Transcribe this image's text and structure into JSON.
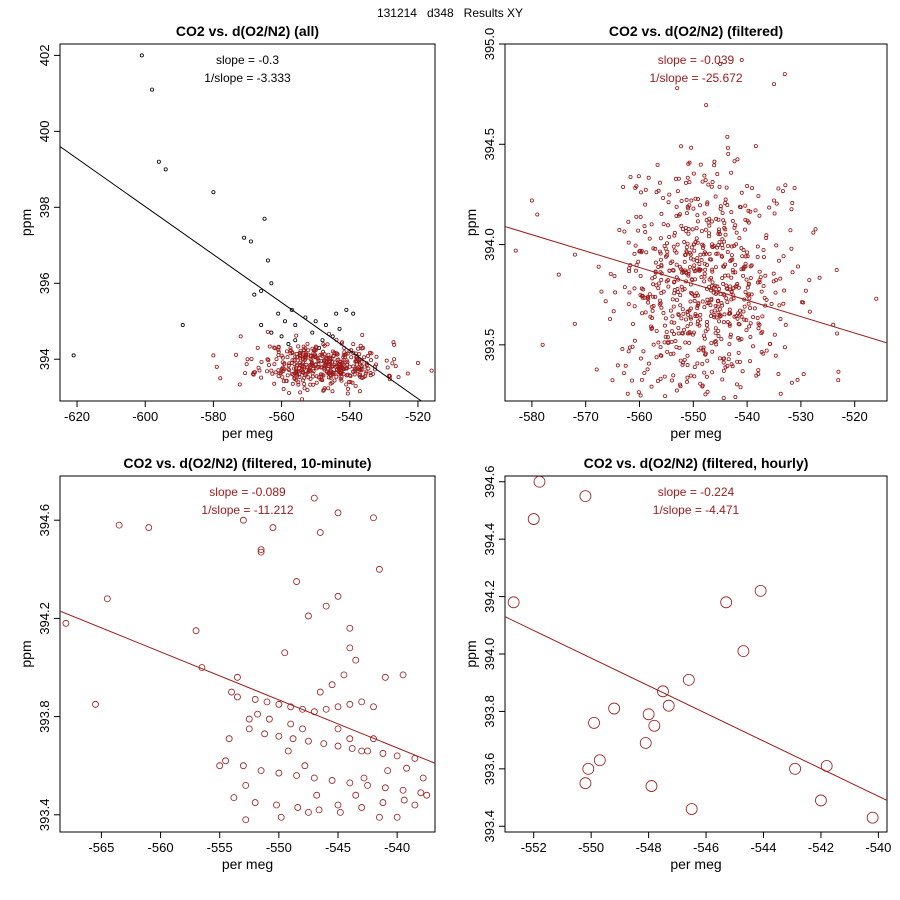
{
  "supertitle": "131214   d348   Results XY",
  "colors": {
    "raw": "#000000",
    "filtered": "#9b1a1a",
    "fit_raw": "#000000",
    "fit_filtered": "#9b1a1a"
  },
  "chart_data": [
    {
      "type": "scatter",
      "title": "CO2 vs. d(O2/N2) (all)",
      "xlabel": "per meg",
      "ylabel": "ppm",
      "xlim": [
        -625,
        -515
      ],
      "ylim": [
        392.9,
        402.3
      ],
      "xticks": [
        -620,
        -600,
        -580,
        -560,
        -540,
        -520
      ],
      "yticks": [
        394,
        396,
        398,
        400,
        402
      ],
      "annotations": [
        "slope = -0.3",
        "1/slope = -3.333"
      ],
      "fit_line": [
        [
          -625,
          399.6
        ],
        [
          -519,
          392.9
        ]
      ],
      "series": [
        {
          "name": "excluded",
          "color": "#000000",
          "marker_size": 1.6,
          "points": [
            [
              -601,
              402.0
            ],
            [
              -598,
              401.1
            ],
            [
              -596,
              399.2
            ],
            [
              -594,
              399.0
            ],
            [
              -580,
              398.4
            ],
            [
              -565,
              397.7
            ],
            [
              -571,
              397.2
            ],
            [
              -569,
              397.1
            ],
            [
              -564,
              396.6
            ],
            [
              -563,
              396.0
            ],
            [
              -566,
              395.8
            ],
            [
              -568,
              395.7
            ],
            [
              -589,
              394.9
            ],
            [
              -621,
              394.1
            ],
            [
              -561,
              395.2
            ],
            [
              -559,
              395.0
            ],
            [
              -556,
              394.9
            ],
            [
              -553,
              395.1
            ],
            [
              -550,
              395.0
            ],
            [
              -547,
              394.9
            ],
            [
              -544,
              395.2
            ],
            [
              -541,
              395.3
            ],
            [
              -545,
              394.6
            ],
            [
              -551,
              394.7
            ],
            [
              -556,
              394.5
            ],
            [
              -560,
              394.6
            ],
            [
              -563,
              394.7
            ],
            [
              -566,
              394.9
            ],
            [
              -558,
              394.4
            ],
            [
              -548,
              394.5
            ],
            [
              -539,
              395.2
            ],
            [
              -557,
              395.3
            ],
            [
              -543,
              394.8
            ],
            [
              -549,
              394.3
            ]
          ]
        },
        {
          "name": "filtered",
          "color": "#9b1a1a",
          "marker_size": 1.6,
          "scatter_seed": 11,
          "n_random": 420,
          "cluster": {
            "x_mean": -548,
            "x_sd": 9,
            "y_mean": 393.85,
            "y_sd": 0.3
          },
          "points": [
            [
              -580,
              394.1
            ],
            [
              -579,
              393.8
            ],
            [
              -578,
              393.5
            ],
            [
              -572,
              394.6
            ],
            [
              -570,
              394.0
            ],
            [
              -567,
              394.3
            ],
            [
              -563,
              393.7
            ],
            [
              -516,
              393.7
            ],
            [
              -520,
              393.9
            ],
            [
              -527,
              394.0
            ]
          ]
        }
      ]
    },
    {
      "type": "scatter",
      "title": "CO2 vs. d(O2/N2) (filtered)",
      "xlabel": "per meg",
      "ylabel": "ppm",
      "xlim": [
        -585,
        -514
      ],
      "ylim": [
        393.22,
        395.0
      ],
      "xticks": [
        -580,
        -570,
        -560,
        -550,
        -540,
        -530,
        -520
      ],
      "yticks": [
        393.5,
        394.0,
        394.5,
        395.0
      ],
      "annotations": [
        "slope = -0.039",
        "1/slope = -25.672"
      ],
      "fit_line": [
        [
          -585,
          394.09
        ],
        [
          -514,
          393.51
        ]
      ],
      "series": [
        {
          "name": "filtered",
          "color": "#9b1a1a",
          "marker_size": 1.6,
          "scatter_seed": 7,
          "n_random": 760,
          "cluster": {
            "x_mean": -548,
            "x_sd": 8,
            "y_mean": 393.78,
            "y_sd": 0.3
          },
          "points": [
            [
              -583,
              393.97
            ],
            [
              -580,
              394.22
            ],
            [
              -579,
              394.15
            ],
            [
              -575,
              393.85
            ],
            [
              -572,
              393.95
            ],
            [
              -578,
              393.5
            ],
            [
              -516,
              393.73
            ],
            [
              -524,
              393.6
            ],
            [
              -535,
              394.8
            ],
            [
              -533,
              394.85
            ],
            [
              -541,
              394.92
            ],
            [
              -545,
              394.9
            ],
            [
              -553,
              394.78
            ]
          ]
        }
      ]
    },
    {
      "type": "scatter",
      "title": "CO2 vs. d(O2/N2) (filtered, 10-minute)",
      "xlabel": "per meg",
      "ylabel": "ppm",
      "xlim": [
        -568.5,
        -536.8
      ],
      "ylim": [
        393.33,
        394.78
      ],
      "xticks": [
        -565,
        -560,
        -555,
        -550,
        -545,
        -540
      ],
      "yticks": [
        393.4,
        393.8,
        394.2,
        394.6
      ],
      "annotations": [
        "slope = -0.089",
        "1/slope = -11.212"
      ],
      "fit_line": [
        [
          -568.5,
          394.23
        ],
        [
          -536.8,
          393.61
        ]
      ],
      "series": [
        {
          "name": "10-minute means",
          "color": "#9b1a1a",
          "marker_size": 3,
          "points": [
            [
              -568,
              394.18
            ],
            [
              -563.5,
              394.58
            ],
            [
              -561,
              394.57
            ],
            [
              -564.5,
              394.28
            ],
            [
              -565.5,
              393.85
            ],
            [
              -557,
              394.15
            ],
            [
              -556.5,
              394.0
            ],
            [
              -551.5,
              394.47
            ],
            [
              -551.5,
              394.48
            ],
            [
              -553,
              394.6
            ],
            [
              -550.5,
              394.57
            ],
            [
              -547,
              394.69
            ],
            [
              -546.5,
              394.55
            ],
            [
              -545,
              394.63
            ],
            [
              -542,
              394.61
            ],
            [
              -541.5,
              394.4
            ],
            [
              -547.5,
              394.21
            ],
            [
              -546,
              394.25
            ],
            [
              -545,
              394.29
            ],
            [
              -544,
              394.16
            ],
            [
              -544,
              394.08
            ],
            [
              -549.5,
              394.06
            ],
            [
              -548.5,
              394.35
            ],
            [
              -541,
              393.96
            ],
            [
              -539.5,
              393.97
            ],
            [
              -554,
              393.9
            ],
            [
              -553.5,
              393.88
            ],
            [
              -552,
              393.87
            ],
            [
              -551,
              393.86
            ],
            [
              -550,
              393.85
            ],
            [
              -549,
              393.84
            ],
            [
              -548,
              393.83
            ],
            [
              -547,
              393.82
            ],
            [
              -546,
              393.83
            ],
            [
              -545,
              393.84
            ],
            [
              -544,
              393.85
            ],
            [
              -543,
              393.86
            ],
            [
              -542,
              393.84
            ],
            [
              -552.5,
              393.75
            ],
            [
              -551.2,
              393.73
            ],
            [
              -550,
              393.72
            ],
            [
              -548.8,
              393.71
            ],
            [
              -547.5,
              393.7
            ],
            [
              -546.2,
              393.69
            ],
            [
              -545,
              393.68
            ],
            [
              -543.8,
              393.67
            ],
            [
              -542.5,
              393.66
            ],
            [
              -541.2,
              393.65
            ],
            [
              -540,
              393.64
            ],
            [
              -538.5,
              393.63
            ],
            [
              -554.5,
              393.62
            ],
            [
              -553,
              393.6
            ],
            [
              -551.5,
              393.58
            ],
            [
              -550,
              393.57
            ],
            [
              -548.5,
              393.56
            ],
            [
              -547,
              393.55
            ],
            [
              -545.5,
              393.54
            ],
            [
              -544,
              393.53
            ],
            [
              -542.5,
              393.52
            ],
            [
              -541,
              393.51
            ],
            [
              -539.5,
              393.5
            ],
            [
              -538,
              393.49
            ],
            [
              -553.8,
              393.47
            ],
            [
              -552,
              393.45
            ],
            [
              -550.2,
              393.44
            ],
            [
              -548.4,
              393.43
            ],
            [
              -546.6,
              393.42
            ],
            [
              -544.8,
              393.41
            ],
            [
              -543,
              393.43
            ],
            [
              -541.2,
              393.45
            ],
            [
              -539.4,
              393.46
            ],
            [
              -537.5,
              393.48
            ],
            [
              -552.8,
              393.38
            ],
            [
              -549.8,
              393.39
            ],
            [
              -547.5,
              393.41
            ],
            [
              -545,
              393.44
            ],
            [
              -541.5,
              393.39
            ],
            [
              -540,
              393.39
            ],
            [
              -538.5,
              393.44
            ],
            [
              -537.8,
              393.55
            ],
            [
              -553.5,
              393.96
            ],
            [
              -552.5,
              393.79
            ],
            [
              -551.8,
              393.81
            ],
            [
              -550.8,
              393.79
            ],
            [
              -549,
              393.77
            ],
            [
              -548,
              393.75
            ],
            [
              -546.5,
              393.9
            ],
            [
              -545.5,
              393.93
            ],
            [
              -544.5,
              393.97
            ],
            [
              -543.5,
              394.03
            ],
            [
              -545,
              393.75
            ],
            [
              -544,
              393.71
            ],
            [
              -543,
              393.66
            ],
            [
              -540.8,
              393.58
            ],
            [
              -539.2,
              393.59
            ],
            [
              -542,
              393.71
            ],
            [
              -554.2,
              393.71
            ],
            [
              -555,
              393.6
            ],
            [
              -552.8,
              393.52
            ],
            [
              -549.2,
              393.66
            ],
            [
              -547.8,
              393.6
            ],
            [
              -546.8,
              393.48
            ],
            [
              -543.5,
              393.48
            ],
            [
              -542.8,
              393.55
            ]
          ]
        }
      ]
    },
    {
      "type": "scatter",
      "title": "CO2 vs. d(O2/N2) (filtered, hourly)",
      "xlabel": "per meg",
      "ylabel": "ppm",
      "xlim": [
        -553.0,
        -539.7
      ],
      "ylim": [
        393.38,
        394.62
      ],
      "xticks": [
        -552,
        -550,
        -548,
        -546,
        -544,
        -542,
        -540
      ],
      "yticks": [
        393.4,
        393.6,
        393.8,
        394.0,
        394.2,
        394.4,
        394.6
      ],
      "annotations": [
        "slope = -0.224",
        "1/slope = -4.471"
      ],
      "fit_line": [
        [
          -553.0,
          394.13
        ],
        [
          -539.7,
          393.49
        ]
      ],
      "series": [
        {
          "name": "hourly means",
          "color": "#9b1a1a",
          "marker_size": 5.5,
          "points": [
            [
              -551.8,
              394.6
            ],
            [
              -552.0,
              394.47
            ],
            [
              -550.2,
              394.55
            ],
            [
              -552.7,
              394.18
            ],
            [
              -549.9,
              393.76
            ],
            [
              -549.7,
              393.63
            ],
            [
              -550.1,
              393.6
            ],
            [
              -550.2,
              393.55
            ],
            [
              -549.2,
              393.81
            ],
            [
              -548.0,
              393.79
            ],
            [
              -547.3,
              393.82
            ],
            [
              -547.8,
              393.75
            ],
            [
              -547.5,
              393.87
            ],
            [
              -546.6,
              393.91
            ],
            [
              -548.1,
              393.69
            ],
            [
              -547.9,
              393.54
            ],
            [
              -546.5,
              393.46
            ],
            [
              -545.3,
              394.18
            ],
            [
              -544.7,
              394.01
            ],
            [
              -544.1,
              394.22
            ],
            [
              -542.9,
              393.6
            ],
            [
              -541.8,
              393.61
            ],
            [
              -542.0,
              393.49
            ],
            [
              -540.2,
              393.43
            ]
          ]
        }
      ]
    }
  ]
}
